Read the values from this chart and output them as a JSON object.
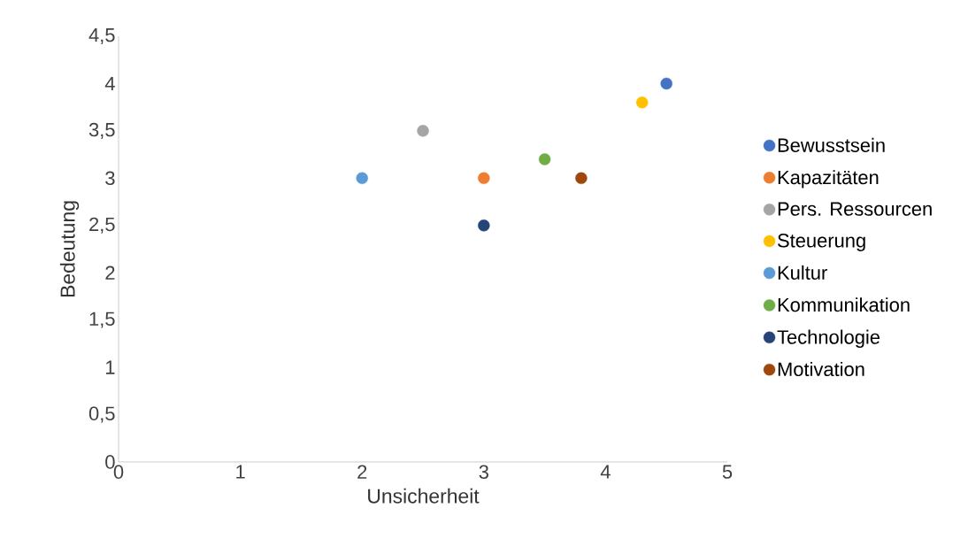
{
  "chart_data": {
    "type": "scatter",
    "xlabel": "Unsicherheit",
    "ylabel": "Bedeutung",
    "series": [
      {
        "name": "Bewusstsein",
        "color": "#4472c4",
        "x": [
          4.5
        ],
        "values": [
          4
        ]
      },
      {
        "name": "Kapazitäten",
        "color": "#ed7d31",
        "x": [
          3
        ],
        "values": [
          3
        ]
      },
      {
        "name": "Pers. Ressourcen",
        "color": "#a5a5a5",
        "x": [
          2.5
        ],
        "values": [
          3.5
        ]
      },
      {
        "name": "Steuerung",
        "color": "#ffc000",
        "x": [
          4.3
        ],
        "values": [
          3.8
        ]
      },
      {
        "name": "Kultur",
        "color": "#5b9bd5",
        "x": [
          2
        ],
        "values": [
          3
        ]
      },
      {
        "name": "Kommunikation",
        "color": "#70ad47",
        "x": [
          3.5
        ],
        "values": [
          3.2
        ]
      },
      {
        "name": "Technologie",
        "color": "#264478",
        "x": [
          3
        ],
        "values": [
          2.5
        ]
      },
      {
        "name": "Motivation",
        "color": "#9e480e",
        "x": [
          3.8
        ],
        "values": [
          3
        ]
      }
    ],
    "xlim": [
      0,
      5
    ],
    "xticks": [
      0,
      1,
      2,
      3,
      4,
      5
    ],
    "ylim": [
      0,
      4.5
    ],
    "yticks": [
      0,
      {
        "value": 0.5,
        "label": "0,5"
      },
      1,
      {
        "value": 1.5,
        "label": "1,5"
      },
      2,
      {
        "value": 2.5,
        "label": "2,5"
      },
      3,
      {
        "value": 3.5,
        "label": "3,5"
      },
      4,
      {
        "value": 4.5,
        "label": "4,5"
      }
    ],
    "grid": false,
    "legend": "right",
    "marker": "circle"
  }
}
